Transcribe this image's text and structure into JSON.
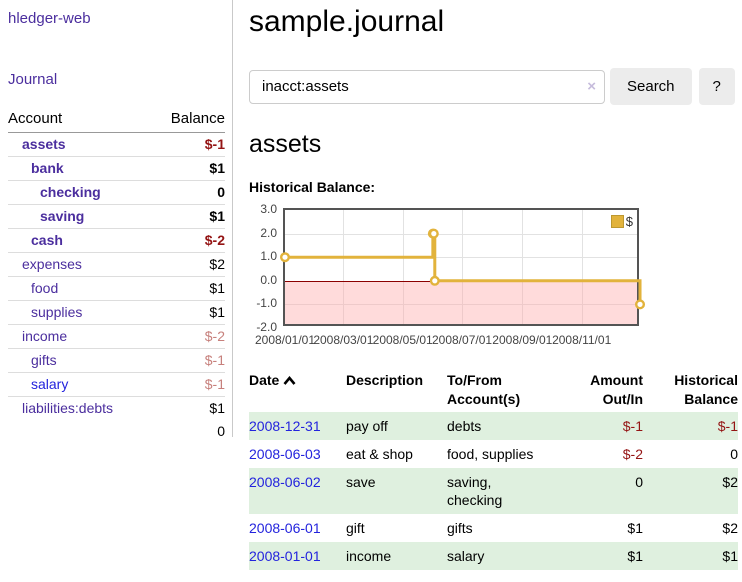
{
  "sidebar": {
    "app_title": "hledger-web",
    "journal_link": "Journal",
    "accounts": {
      "headers": {
        "account": "Account",
        "balance": "Balance"
      },
      "rows": [
        {
          "name": "assets",
          "depth": 1,
          "bold": true,
          "balance": "$-1",
          "balance_color": "negative"
        },
        {
          "name": "bank",
          "depth": 2,
          "bold": true,
          "balance": "$1"
        },
        {
          "name": "checking",
          "depth": 3,
          "bold": true,
          "balance": "0"
        },
        {
          "name": "saving",
          "depth": 3,
          "bold": true,
          "balance": "$1"
        },
        {
          "name": "cash",
          "depth": 2,
          "bold": true,
          "balance": "$-2",
          "balance_color": "negative"
        },
        {
          "name": "expenses",
          "depth": 1,
          "bold": false,
          "balance": "$2"
        },
        {
          "name": "food",
          "depth": 2,
          "bold": false,
          "balance": "$1"
        },
        {
          "name": "supplies",
          "depth": 2,
          "bold": false,
          "balance": "$1"
        },
        {
          "name": "income",
          "depth": 1,
          "bold": false,
          "balance": "$-2",
          "balance_color": "negative-muted"
        },
        {
          "name": "gifts",
          "depth": 2,
          "bold": false,
          "balance": "$-1",
          "balance_color": "negative-muted"
        },
        {
          "name": "salary",
          "depth": 2,
          "bold": false,
          "balance": "$-1",
          "balance_color": "negative-muted",
          "link_color": "blue"
        },
        {
          "name": "liabilities:debts",
          "depth": 1,
          "bold": false,
          "balance": "$1"
        }
      ],
      "total": "0"
    }
  },
  "main": {
    "title": "sample.journal",
    "search": {
      "value": "inacct:assets",
      "clear_icon": "×",
      "button": "Search",
      "help_button": "?"
    },
    "account_heading": "assets",
    "register": {
      "headers": {
        "date": "Date",
        "description": "Description",
        "accounts": "To/From Account(s)",
        "amount": "Amount Out/In",
        "balance": "Historical Balance"
      },
      "rows": [
        {
          "date": "2008-12-31",
          "description": "pay off",
          "accounts": "debts",
          "amount": "$-1",
          "balance": "$-1"
        },
        {
          "date": "2008-06-03",
          "description": "eat & shop",
          "accounts": "food, supplies",
          "amount": "$-2",
          "balance": "0"
        },
        {
          "date": "2008-06-02",
          "description": "save",
          "accounts": "saving, checking",
          "amount": "0",
          "balance": "$2"
        },
        {
          "date": "2008-06-01",
          "description": "gift",
          "accounts": "gifts",
          "amount": "$1",
          "balance": "$2"
        },
        {
          "date": "2008-01-01",
          "description": "income",
          "accounts": "salary",
          "amount": "$1",
          "balance": "$1"
        }
      ]
    }
  },
  "chart_data": {
    "type": "line",
    "step": true,
    "title": "Historical Balance:",
    "series": [
      {
        "name": "$",
        "points": [
          [
            "2008-01-01",
            1
          ],
          [
            "2008-06-01",
            2
          ],
          [
            "2008-06-02",
            2
          ],
          [
            "2008-06-03",
            0
          ],
          [
            "2008-12-31",
            -1
          ]
        ]
      }
    ],
    "x_range": [
      "2008-01-01",
      "2009-01-01"
    ],
    "x_ticks": [
      "2008/01/01",
      "2008/03/01",
      "2008/05/01",
      "2008/07/01",
      "2008/09/01",
      "2008/11/01"
    ],
    "y_ticks": [
      "3.0",
      "2.0",
      "1.0",
      "0.0",
      "-1.0",
      "-2.0"
    ],
    "ylim": [
      -2,
      3
    ],
    "grid": true,
    "legend_position": "top-right"
  },
  "colors": {
    "link_purple": "#4b2e9e",
    "link_blue": "#2323dd",
    "negative_red": "#941414",
    "negative_muted": "#c7807c",
    "stripe_green": "#dff0df",
    "chart_line_yellow": "#e2b33c",
    "chart_zero_line": "#8b0000",
    "chart_negative_fill": "rgba(255,170,170,0.42)",
    "chart_grid": "#e2e2e2",
    "chart_border": "#545454"
  }
}
